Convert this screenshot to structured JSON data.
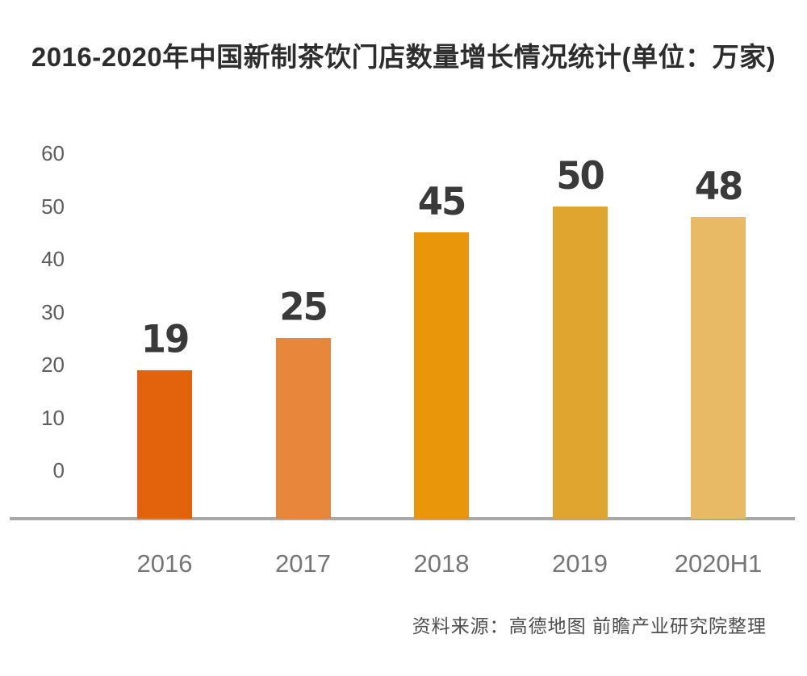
{
  "header": {
    "title": "2016-2020年中国新制茶饮门店数量增长情况统计(单位：万家)"
  },
  "footer": {
    "source": "资料来源：高德地图 前瞻产业研究院整理"
  },
  "chart_data": {
    "type": "bar",
    "title": "2016-2020年中国新制茶饮门店数量增长情况统计",
    "unit": "万家",
    "categories": [
      "2016",
      "2017",
      "2018",
      "2019",
      "2020H1"
    ],
    "values": [
      19,
      25,
      45,
      50,
      48
    ],
    "yticks": [
      0,
      10,
      20,
      30,
      40,
      50,
      60
    ],
    "ylim": [
      0,
      60
    ],
    "xlabel": "",
    "ylabel": "",
    "grid": false,
    "legend": false,
    "bar_colors": [
      "#e2630c",
      "#e8863c",
      "#e9960a",
      "#dfa52f",
      "#e9ba66"
    ],
    "value_label_color": "#3a3a3a",
    "axis_line_color": "#a8a8a8",
    "y_tick_color": "#5d5d5d",
    "x_tick_color": "#767676"
  }
}
